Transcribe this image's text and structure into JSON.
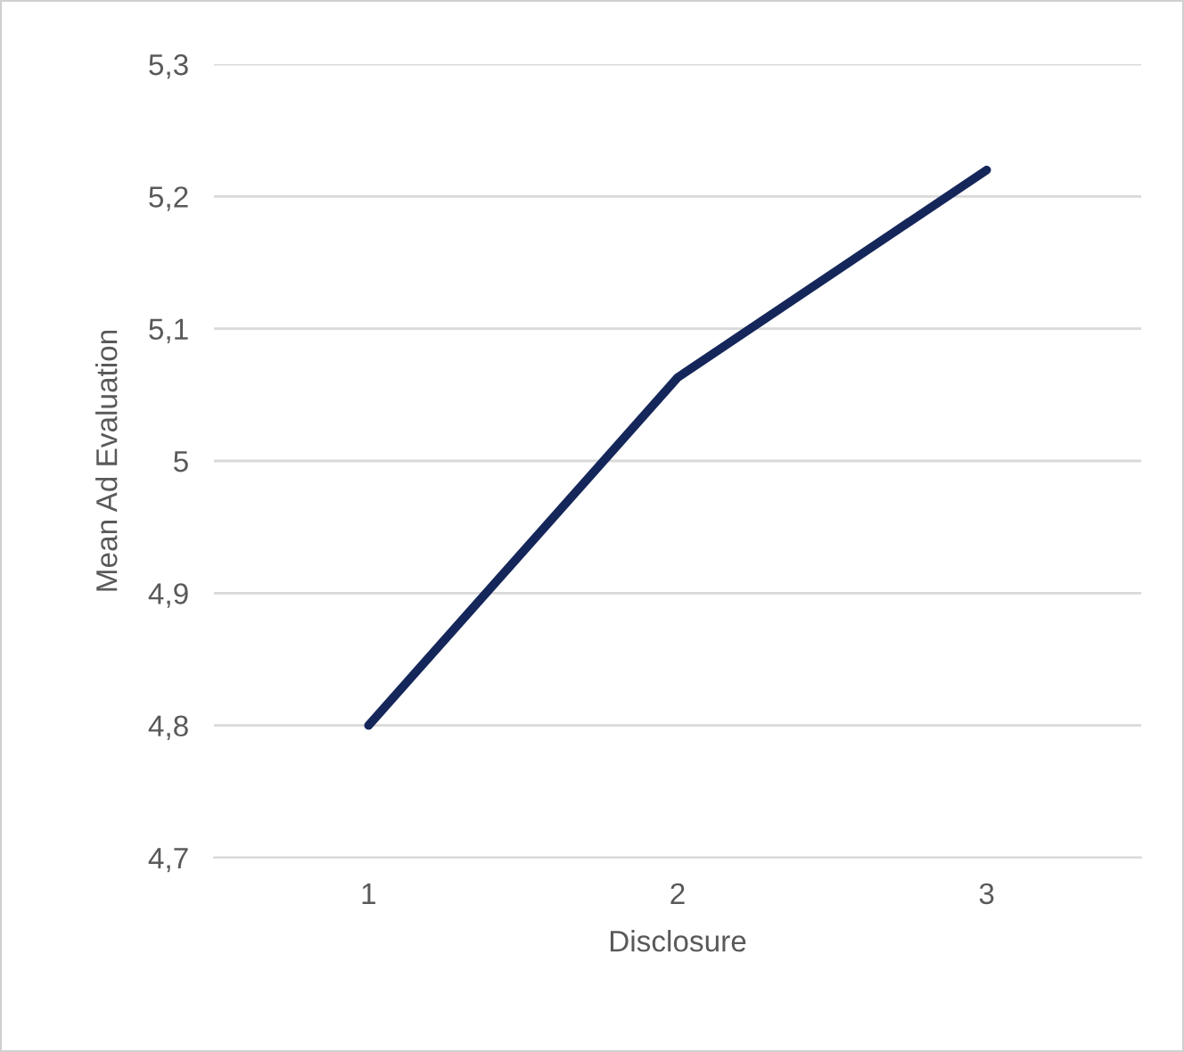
{
  "chart_data": {
    "type": "line",
    "xlabel": "Disclosure",
    "ylabel": "Mean Ad Evaluation",
    "categories": [
      "1",
      "2",
      "3"
    ],
    "series": [
      {
        "color": "#15275a",
        "values": [
          4.8,
          5.063,
          5.22
        ]
      }
    ],
    "ylim": [
      4.7,
      5.3
    ],
    "yticks": [
      {
        "value": 4.7,
        "label": "4,7"
      },
      {
        "value": 4.8,
        "label": "4,8"
      },
      {
        "value": 4.9,
        "label": "4,9"
      },
      5,
      {
        "value": 5.1,
        "label": "5,1"
      },
      {
        "value": 5.2,
        "label": "5,2"
      },
      {
        "value": 5.3,
        "label": "5,3"
      }
    ],
    "grid": "y",
    "marker": "none",
    "line_style": "solid"
  }
}
